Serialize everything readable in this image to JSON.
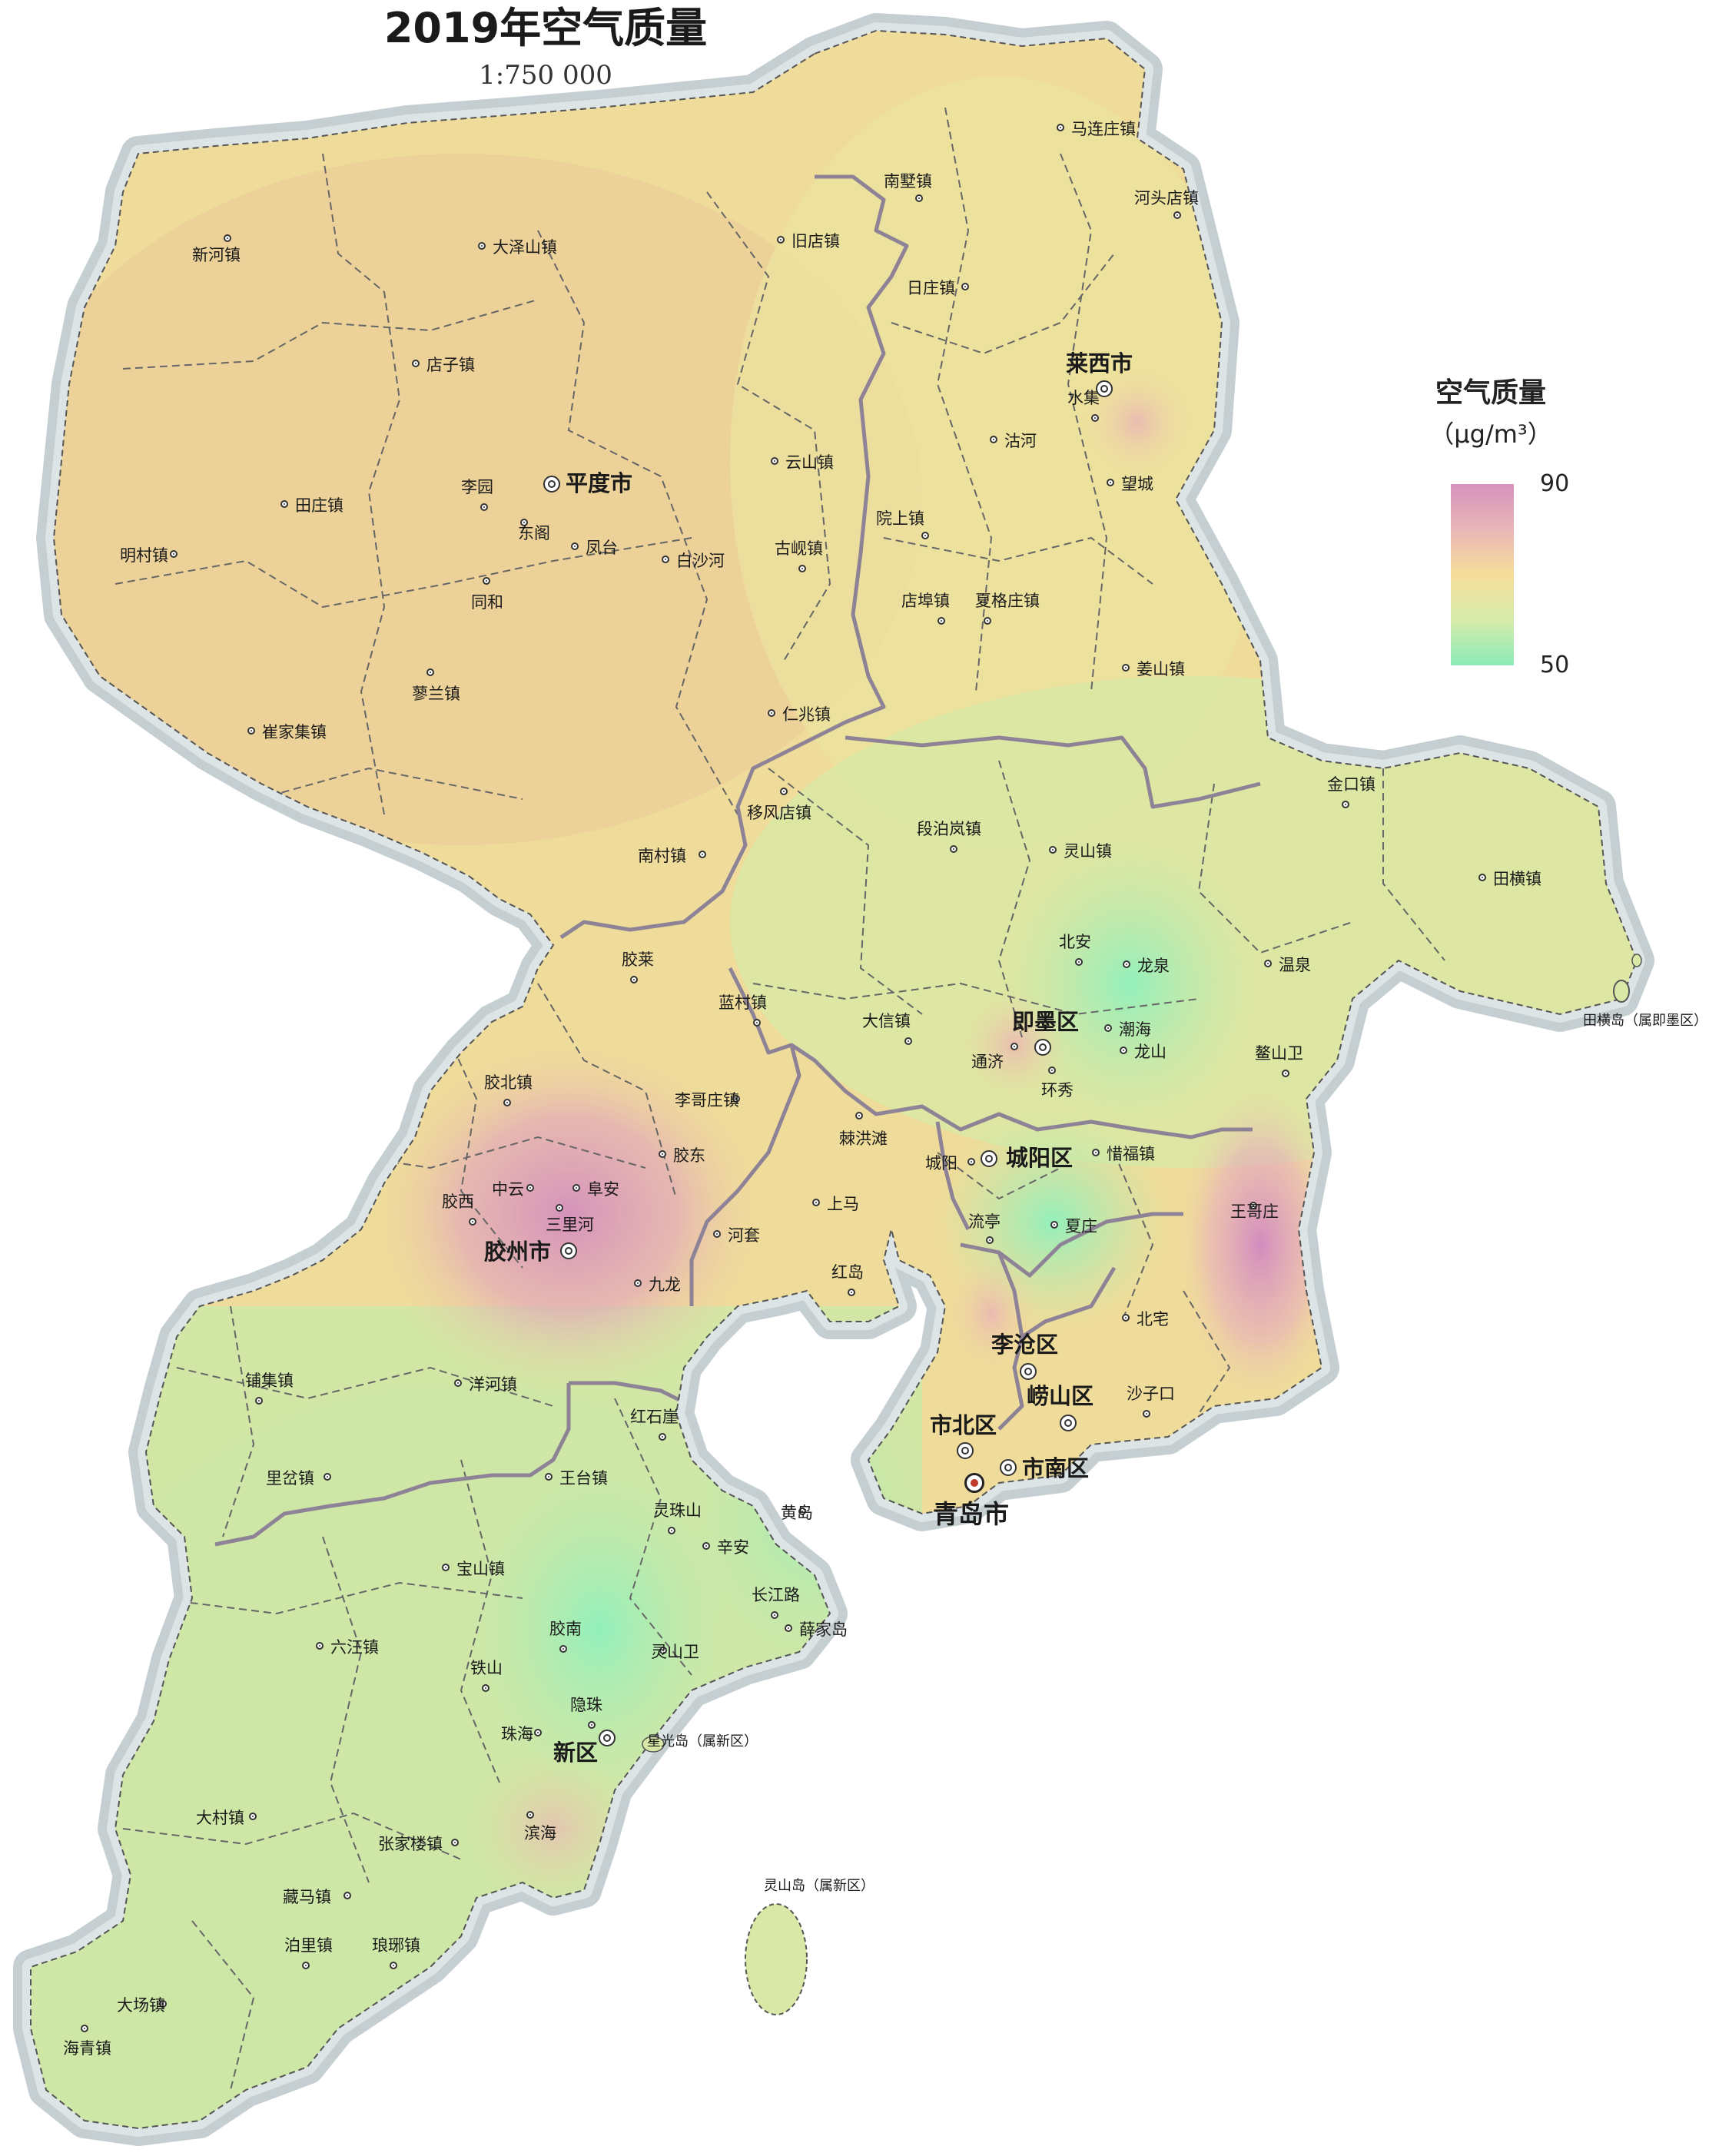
{
  "title": "2019年空气质量",
  "scale": "1:750 000",
  "legend": {
    "title": "空气质量",
    "unit": "（μg/m³）",
    "max": "90",
    "min": "50",
    "colors": [
      "#d692bd",
      "#e9b6b8",
      "#f6dd9a",
      "#d6ebaa",
      "#8cebb8"
    ]
  },
  "colors": {
    "sea": "#ffffff",
    "coast_halo": "#c5cfd2",
    "land_base": "#efdc9a",
    "county_boundary": "#9a8f9c",
    "town_boundary": "#666666"
  },
  "capital": {
    "name": "青岛市",
    "icon": "capital-star-icon"
  },
  "cities": [
    "平度市",
    "莱西市",
    "即墨区",
    "城阳区",
    "胶州市",
    "李沧区",
    "崂山区",
    "市北区",
    "市南区",
    "新区"
  ],
  "towns": [
    "马连庄镇",
    "南墅镇",
    "河头店镇",
    "旧店镇",
    "大泽山镇",
    "新河镇",
    "日庄镇",
    "店子镇",
    "水集",
    "沽河",
    "望城",
    "云山镇",
    "李园",
    "东阁",
    "田庄镇",
    "凤台",
    "明村镇",
    "白沙河",
    "同和",
    "古岘镇",
    "院上镇",
    "店埠镇",
    "夏格庄镇",
    "姜山镇",
    "蓼兰镇",
    "崔家集镇",
    "仁兆镇",
    "移风店镇",
    "金口镇",
    "段泊岚镇",
    "灵山镇",
    "南村镇",
    "田横镇",
    "胶莱",
    "北安",
    "龙泉",
    "温泉",
    "蓝村镇",
    "大信镇",
    "潮海",
    "通济",
    "龙山",
    "环秀",
    "鳌山卫",
    "胶北镇",
    "李哥庄镇",
    "棘洪滩",
    "胶东",
    "惜福镇",
    "城阳",
    "中云",
    "阜安",
    "胶西",
    "上马",
    "王哥庄",
    "三里河",
    "河套",
    "流亭",
    "夏庄",
    "九龙",
    "红岛",
    "北宅",
    "洋河镇",
    "铺集镇",
    "沙子口",
    "红石崖",
    "里岔镇",
    "王台镇",
    "黄岛",
    "灵珠山",
    "辛安",
    "宝山镇",
    "长江路",
    "薛家岛",
    "六汪镇",
    "胶南",
    "灵山卫",
    "铁山",
    "珠海",
    "隐珠",
    "大村镇",
    "滨海",
    "张家楼镇",
    "藏马镇",
    "大场镇",
    "泊里镇",
    "琅琊镇",
    "海青镇"
  ],
  "islands": [
    "田横岛（属即墨区）",
    "星光岛（属新区）",
    "灵山岛（属新区）"
  ]
}
